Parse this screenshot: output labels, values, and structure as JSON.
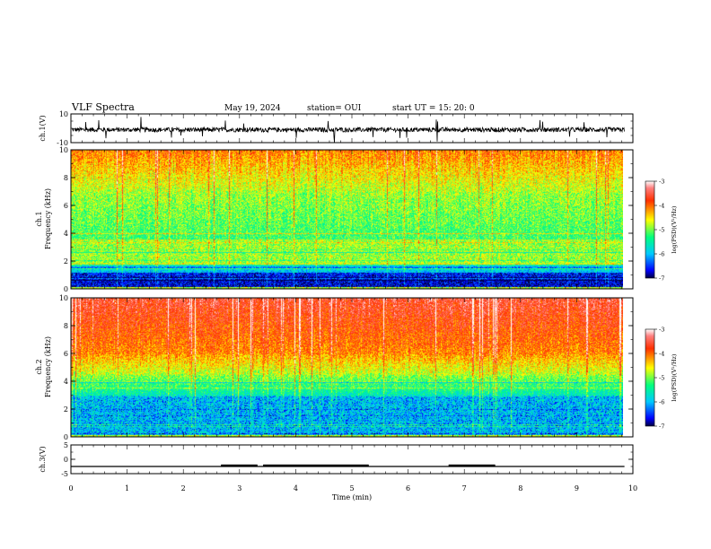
{
  "header": {
    "title": "VLF Spectra",
    "date": "May 19, 2024",
    "station": "station= OUI",
    "start": "start  UT  =   15: 20: 0"
  },
  "chart_data": [
    {
      "type": "line",
      "panel": "ch1-waveform",
      "ylabel": "ch.1(V)",
      "ylim": [
        -10,
        10
      ],
      "yticks": [
        "10",
        "-10"
      ],
      "x": [
        0,
        9.85
      ],
      "series": [
        {
          "values": [
            -1,
            -1
          ]
        }
      ]
    },
    {
      "type": "heatmap",
      "panel": "ch1-spectrogram",
      "ylabel_top": "ch.1",
      "ylabel": "Frequency  (kHz)",
      "ylim": [
        0,
        10
      ],
      "yticks": [
        "10",
        "8",
        "6",
        "4",
        "2",
        "0"
      ],
      "xlim": [
        0,
        9.85
      ],
      "colorbar": {
        "label": "log(PSD)(V²/Hz)",
        "range": [
          -7,
          -3
        ],
        "ticks": [
          "-3",
          "-4",
          "-5",
          "-6",
          "-7"
        ]
      }
    },
    {
      "type": "heatmap",
      "panel": "ch2-spectrogram",
      "ylabel_top": "ch.2",
      "ylabel": "Frequency  (kHz)",
      "ylim": [
        0,
        10
      ],
      "yticks": [
        "10",
        "8",
        "6",
        "4",
        "2",
        "0"
      ],
      "xlim": [
        0,
        9.85
      ],
      "colorbar": {
        "label": "log(PSD)(V²/Hz)",
        "range": [
          -7,
          -3
        ],
        "ticks": [
          "-3",
          "-4",
          "-5",
          "-6",
          "-7"
        ]
      }
    },
    {
      "type": "line",
      "panel": "ch3-waveform",
      "ylabel": "ch.3(V)",
      "ylim": [
        -5,
        5
      ],
      "yticks": [
        "5",
        "0",
        "-5"
      ],
      "xlabel": "Time  (min)",
      "xlim": [
        0,
        10
      ],
      "xticks": [
        "0",
        "1",
        "2",
        "3",
        "4",
        "5",
        "6",
        "7",
        "8",
        "9",
        "10"
      ],
      "baseline": -2.5,
      "segments": [
        [
          2.67,
          3.32
        ],
        [
          3.42,
          5.3
        ],
        [
          6.72,
          7.55
        ]
      ]
    }
  ]
}
